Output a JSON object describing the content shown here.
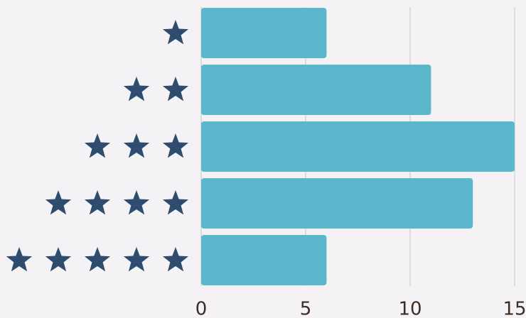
{
  "chart_data": {
    "type": "bar",
    "orientation": "horizontal",
    "categories": [
      1,
      2,
      3,
      4,
      5
    ],
    "values": [
      6,
      11,
      15,
      13,
      6
    ],
    "color": "#5bb8cc",
    "icon_color": "#2e4d6e",
    "xlim": [
      0,
      15
    ],
    "xticks": [
      0,
      5,
      10,
      15
    ],
    "grid": true
  }
}
